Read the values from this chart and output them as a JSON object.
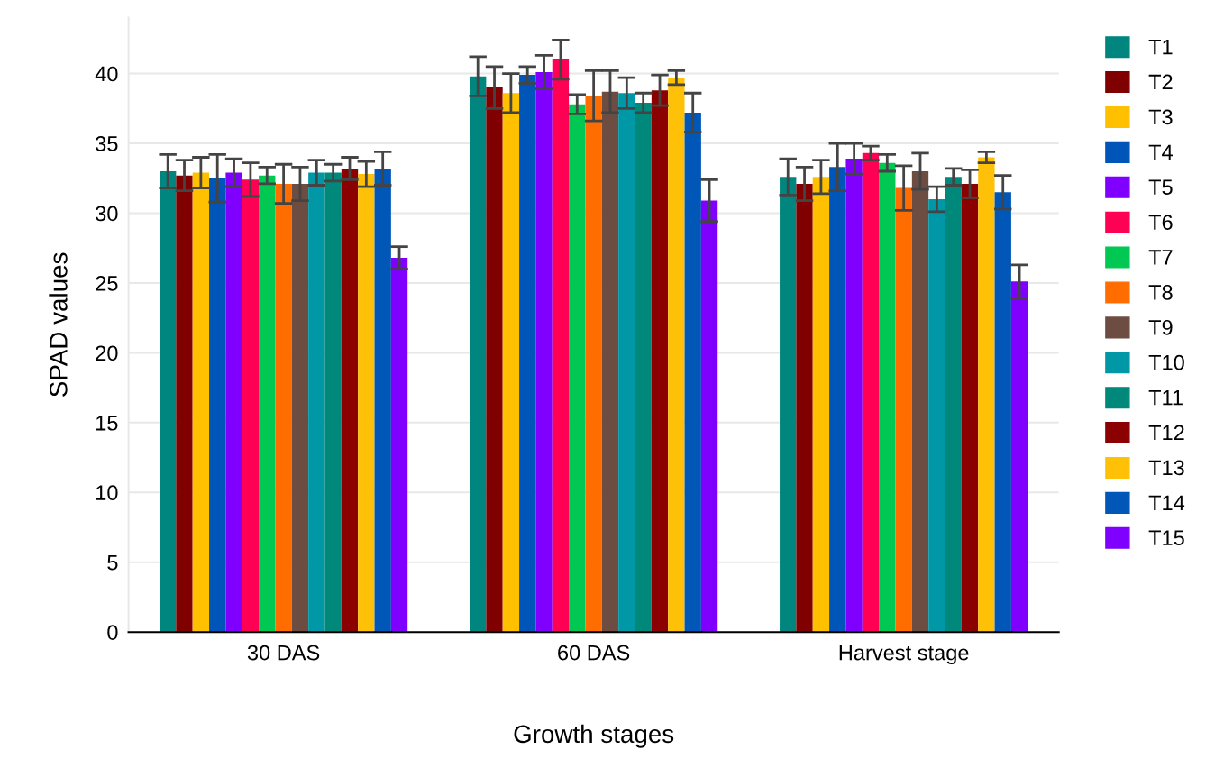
{
  "chart_data": {
    "type": "bar",
    "xlabel": "Growth stages",
    "ylabel": "SPAD values",
    "categories": [
      "30 DAS",
      "60 DAS",
      "Harvest stage"
    ],
    "ylim": [
      0,
      44
    ],
    "yticks": [
      0,
      5,
      10,
      15,
      20,
      25,
      30,
      35,
      40
    ],
    "grid": "y",
    "legend": "top right",
    "series": [
      {
        "name": "T1",
        "color": "#00857f",
        "values": [
          33.0,
          39.8,
          32.6
        ],
        "errors": [
          1.2,
          1.4,
          1.3
        ]
      },
      {
        "name": "T2",
        "color": "#800000",
        "values": [
          32.7,
          39.0,
          32.1
        ],
        "errors": [
          1.1,
          1.5,
          1.2
        ]
      },
      {
        "name": "T3",
        "color": "#ffc000",
        "values": [
          32.9,
          38.6,
          32.6
        ],
        "errors": [
          1.1,
          1.4,
          1.2
        ]
      },
      {
        "name": "T4",
        "color": "#0055b8",
        "values": [
          32.5,
          39.9,
          33.3
        ],
        "errors": [
          1.7,
          0.6,
          1.7
        ]
      },
      {
        "name": "T5",
        "color": "#8000ff",
        "values": [
          32.9,
          40.1,
          33.9
        ],
        "errors": [
          1.0,
          1.2,
          1.1
        ]
      },
      {
        "name": "T6",
        "color": "#ff0055",
        "values": [
          32.4,
          41.0,
          34.3
        ],
        "errors": [
          1.2,
          1.4,
          0.5
        ]
      },
      {
        "name": "T7",
        "color": "#00c853",
        "values": [
          32.7,
          37.8,
          33.6
        ],
        "errors": [
          0.6,
          0.7,
          0.6
        ]
      },
      {
        "name": "T8",
        "color": "#ff6d00",
        "values": [
          32.1,
          38.4,
          31.8
        ],
        "errors": [
          1.4,
          1.8,
          1.6
        ]
      },
      {
        "name": "T9",
        "color": "#6d4c41",
        "values": [
          32.1,
          38.7,
          33.0
        ],
        "errors": [
          1.2,
          1.5,
          1.3
        ]
      },
      {
        "name": "T10",
        "color": "#0097a7",
        "values": [
          32.9,
          38.6,
          31.0
        ],
        "errors": [
          0.9,
          1.1,
          0.9
        ]
      },
      {
        "name": "T11",
        "color": "#00897b",
        "values": [
          32.9,
          37.9,
          32.6
        ],
        "errors": [
          0.6,
          0.7,
          0.6
        ]
      },
      {
        "name": "T12",
        "color": "#8b0000",
        "values": [
          33.2,
          38.8,
          32.1
        ],
        "errors": [
          0.8,
          1.1,
          1.0
        ]
      },
      {
        "name": "T13",
        "color": "#ffc107",
        "values": [
          32.8,
          39.7,
          34.0
        ],
        "errors": [
          0.9,
          0.5,
          0.4
        ]
      },
      {
        "name": "T14",
        "color": "#0057b8",
        "values": [
          33.2,
          37.2,
          31.5
        ],
        "errors": [
          1.2,
          1.4,
          1.2
        ]
      },
      {
        "name": "T15",
        "color": "#8000ff",
        "values": [
          26.8,
          30.9,
          25.1
        ],
        "errors": [
          0.8,
          1.5,
          1.2
        ]
      }
    ]
  }
}
